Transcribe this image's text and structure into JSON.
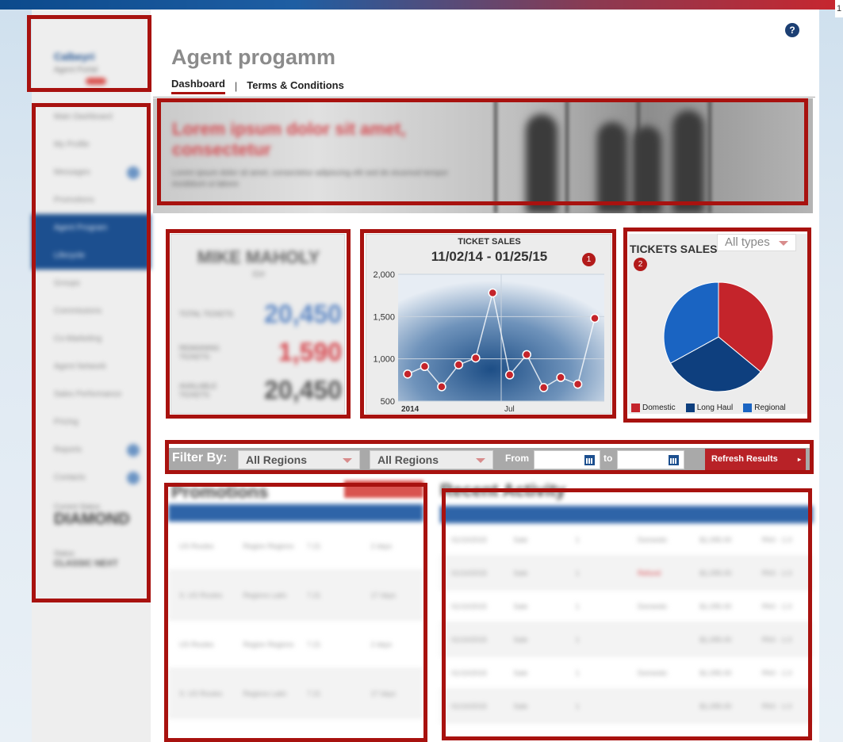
{
  "corner_marker": "1",
  "app": {
    "title": "Agent progamm",
    "tabs": [
      {
        "label": "Dashboard"
      },
      {
        "label": "Terms & Conditions"
      }
    ],
    "help_icon": "?"
  },
  "sidebar": {
    "brand": "Calbeyri",
    "brand_sub": "Agent Portal",
    "items": [
      {
        "label": "Main Dashboard"
      },
      {
        "label": "My Profile"
      },
      {
        "label": "Messages"
      },
      {
        "label": "Promotions"
      },
      {
        "label": "Agent Program"
      },
      {
        "label": "Lifecycle"
      },
      {
        "label": "Groups"
      },
      {
        "label": "Commissions"
      },
      {
        "label": "Co-Marketing"
      },
      {
        "label": "Agent Network"
      },
      {
        "label": "Sales Performance"
      },
      {
        "label": "Pricing"
      },
      {
        "label": "Reports"
      },
      {
        "label": "Contacts"
      }
    ],
    "rank_label": "Current Status",
    "rank_value": "DIAMOND",
    "next_label": "Status",
    "next_value": "CLASSIC NEXT"
  },
  "hero": {
    "heading": "Lorem ipsum dolor sit amet, consectetur",
    "body": "Lorem ipsum dolor sit amet, consectetur adipiscing elit sed do eiusmod tempor incididunt ut labore"
  },
  "agent_card": {
    "name": "MIKE MAHOLY",
    "sub": "ID#",
    "stats": [
      {
        "label": "TOTAL TICKETS",
        "value": "20,450",
        "color": "#5b86c4"
      },
      {
        "label": "REMAINING TICKETS",
        "value": "1,590",
        "color": "#d6454c"
      },
      {
        "label": "AVAILABLE TICKETS",
        "value": "20,450",
        "color": "#555555"
      }
    ]
  },
  "chart_panel": {
    "badge": "1"
  },
  "pie_panel": {
    "title": "TICKETS SALES",
    "select_value": "All types",
    "badge": "2"
  },
  "filter": {
    "label": "Filter By:",
    "region1": "All Regions",
    "region2": "All Regions",
    "from_label": "From",
    "to_label": "to",
    "refresh_label": "Refresh Results"
  },
  "promotions": {
    "title": "Promotions",
    "rows": [
      [
        "US Routes",
        "Region Regions",
        "7.21",
        "2 days"
      ],
      [
        "S. US Routes",
        "Regions Latin",
        "7.21",
        "17 days"
      ],
      [
        "US Routes",
        "Region Regions",
        "7.21",
        "2 days"
      ],
      [
        "S. US Routes",
        "Regions Latin",
        "7.21",
        "17 days"
      ]
    ]
  },
  "activity": {
    "title": "Recent Activity",
    "rows": [
      [
        "01/10/2015",
        "Sale",
        "1",
        "Domestic",
        "$1,095.00",
        "PAX - 1.0"
      ],
      [
        "01/10/2015",
        "Sale",
        "1",
        "Refund",
        "$1,095.00",
        "PAX - 1.0"
      ],
      [
        "01/10/2015",
        "Sale",
        "1",
        "Domestic",
        "$1,095.00",
        "PAX - 1.0"
      ],
      [
        "01/10/2015",
        "Sale",
        "1",
        "",
        "$1,095.00",
        "PAX - 1.0"
      ],
      [
        "01/10/2015",
        "Sale",
        "1",
        "Domestic",
        "$1,095.00",
        "PAX - 1.0"
      ],
      [
        "01/10/2015",
        "Sale",
        "1",
        "",
        "$1,095.00",
        "PAX - 1.0"
      ]
    ]
  },
  "chart_data": [
    {
      "type": "line",
      "title": "TICKET SALES",
      "subtitle": "11/02/14 - 01/25/15",
      "x_tick_labels": [
        "2014",
        "Jul"
      ],
      "y_ticks": [
        500,
        1000,
        1500,
        2000
      ],
      "y_tick_labels": [
        "500",
        "1,000",
        "1,500",
        "2,000"
      ],
      "ylim": [
        500,
        2000
      ],
      "values": [
        820,
        910,
        670,
        930,
        1010,
        1780,
        810,
        1050,
        660,
        780,
        700,
        1480
      ],
      "colors": {
        "point": "#c4242b",
        "line": "#ffffff"
      }
    },
    {
      "type": "pie",
      "title": "TICKETS SALES",
      "labels": [
        "Domestic",
        "Long Haul",
        "Regional"
      ],
      "values": [
        36,
        31,
        33
      ],
      "colors": [
        "#c4242b",
        "#0e3f7e",
        "#1a64c2"
      ]
    }
  ]
}
